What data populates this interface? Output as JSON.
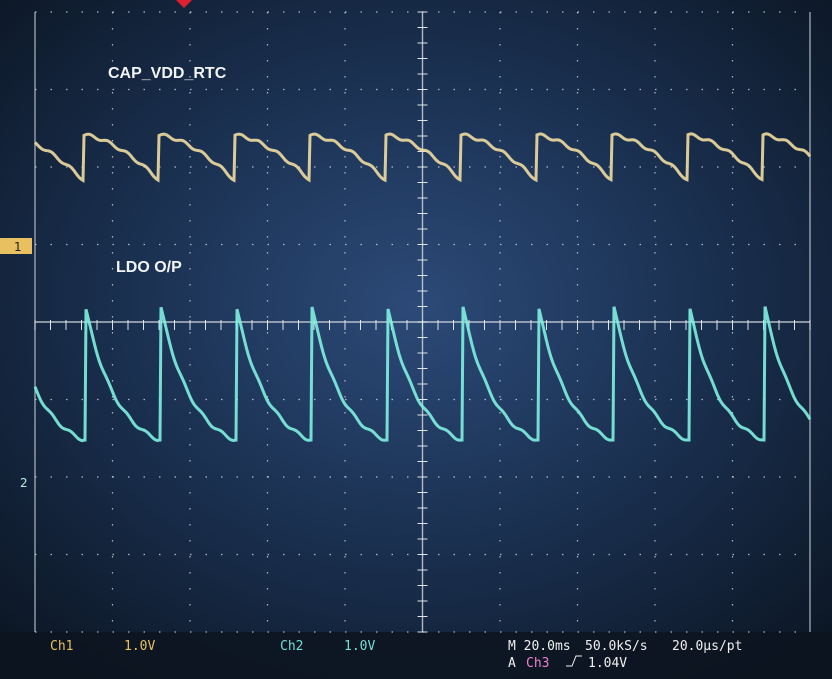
{
  "labels": {
    "channel1_trace": "CAP_VDD_RTC",
    "channel2_trace": "LDO O/P"
  },
  "markers": {
    "ch1": "1",
    "ch2": "2"
  },
  "status": {
    "ch1_name": "Ch1",
    "ch1_scale": "1.0V",
    "ch2_name": "Ch2",
    "ch2_scale": "1.0V",
    "timebase": "M 20.0ms",
    "sample_rate": "50.0kS/s",
    "resolution": "20.0µs/pt",
    "trigger_prefix": "A",
    "trigger_source": "Ch3",
    "trigger_level": "1.04V"
  }
}
